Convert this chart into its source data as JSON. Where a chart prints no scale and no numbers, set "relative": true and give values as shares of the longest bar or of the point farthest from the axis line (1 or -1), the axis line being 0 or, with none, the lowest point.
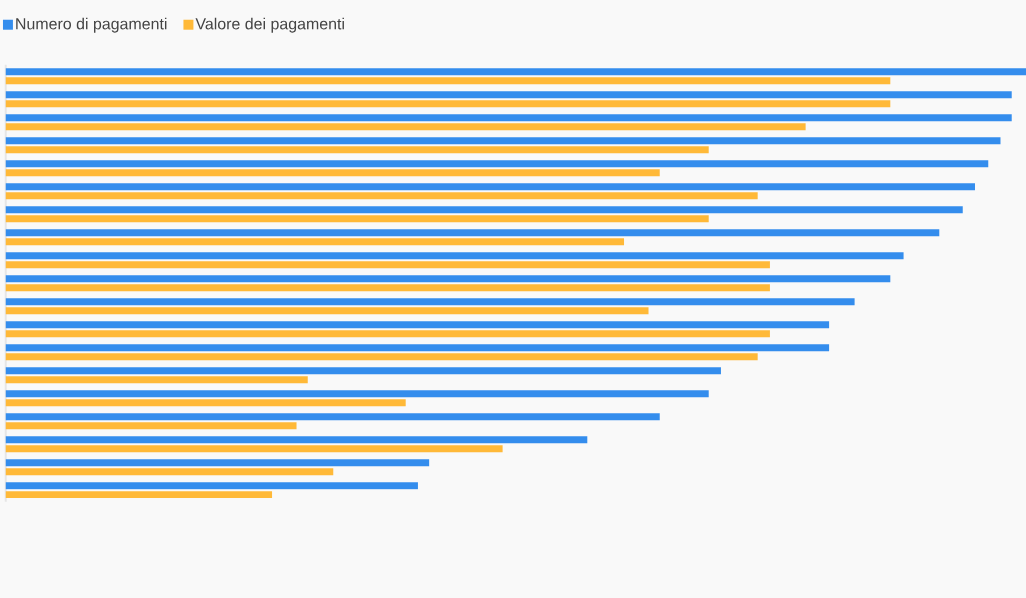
{
  "chart_data": {
    "type": "bar",
    "orientation": "horizontal",
    "relative": true,
    "legend": "top left",
    "categories": [
      null,
      null,
      null,
      null,
      null,
      null,
      null,
      null,
      null,
      null,
      null,
      null,
      null,
      null,
      null,
      null,
      null,
      null,
      null
    ],
    "series": [
      {
        "name": "Numero di pagamenti",
        "color": "#348ded",
        "values": [
          1.0,
          0.986,
          0.986,
          0.975,
          0.963,
          0.95,
          0.938,
          0.915,
          0.88,
          0.867,
          0.832,
          0.807,
          0.807,
          0.701,
          0.689,
          0.641,
          0.57,
          0.415,
          0.404
        ]
      },
      {
        "name": "Valore dei pagamenti",
        "color": "#ffb938",
        "values": [
          0.867,
          0.867,
          0.784,
          0.689,
          0.641,
          0.737,
          0.689,
          0.606,
          0.749,
          0.749,
          0.63,
          0.749,
          0.737,
          0.296,
          0.392,
          0.285,
          0.487,
          0.321,
          0.261
        ]
      }
    ]
  }
}
